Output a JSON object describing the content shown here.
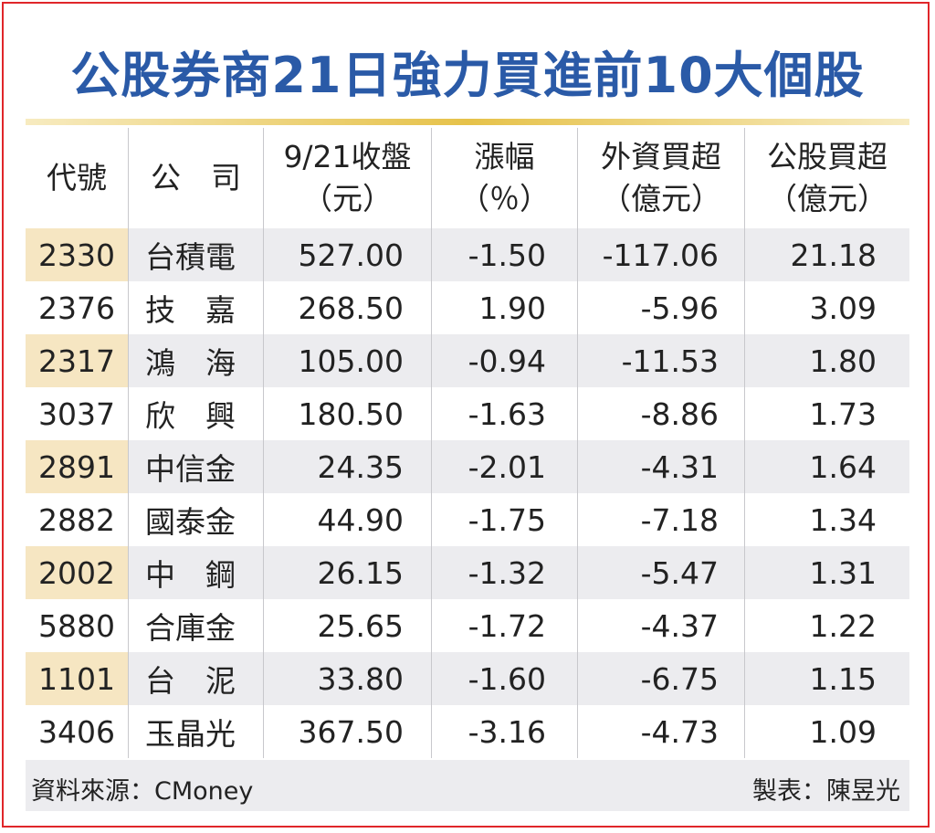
{
  "header": {
    "title": "公股券商21日強力買進前10大個股"
  },
  "table": {
    "columns": [
      [
        "代號"
      ],
      [
        "公　司"
      ],
      [
        "9/21收盤",
        "（元）"
      ],
      [
        "漲幅",
        "（％）"
      ],
      [
        "外資買超",
        "（億元）"
      ],
      [
        "公股買超",
        "（億元）"
      ]
    ],
    "rows": [
      [
        "2330",
        "台積電",
        "527.00",
        "-1.50",
        "-117.06",
        "21.18"
      ],
      [
        "2376",
        "技　嘉",
        "268.50",
        "1.90",
        "-5.96",
        "3.09"
      ],
      [
        "2317",
        "鴻　海",
        "105.00",
        "-0.94",
        "-11.53",
        "1.80"
      ],
      [
        "3037",
        "欣　興",
        "180.50",
        "-1.63",
        "-8.86",
        "1.73"
      ],
      [
        "2891",
        "中信金",
        "24.35",
        "-2.01",
        "-4.31",
        "1.64"
      ],
      [
        "2882",
        "國泰金",
        "44.90",
        "-1.75",
        "-7.18",
        "1.34"
      ],
      [
        "2002",
        "中　鋼",
        "26.15",
        "-1.32",
        "-5.47",
        "1.31"
      ],
      [
        "5880",
        "合庫金",
        "25.65",
        "-1.72",
        "-4.37",
        "1.22"
      ],
      [
        "1101",
        "台　泥",
        "33.80",
        "-1.60",
        "-6.75",
        "1.15"
      ],
      [
        "3406",
        "玉晶光",
        "367.50",
        "-3.16",
        "-4.73",
        "1.09"
      ]
    ]
  },
  "footer": {
    "source": "資料來源：CMoney",
    "credit": "製表：陳昱光"
  }
}
